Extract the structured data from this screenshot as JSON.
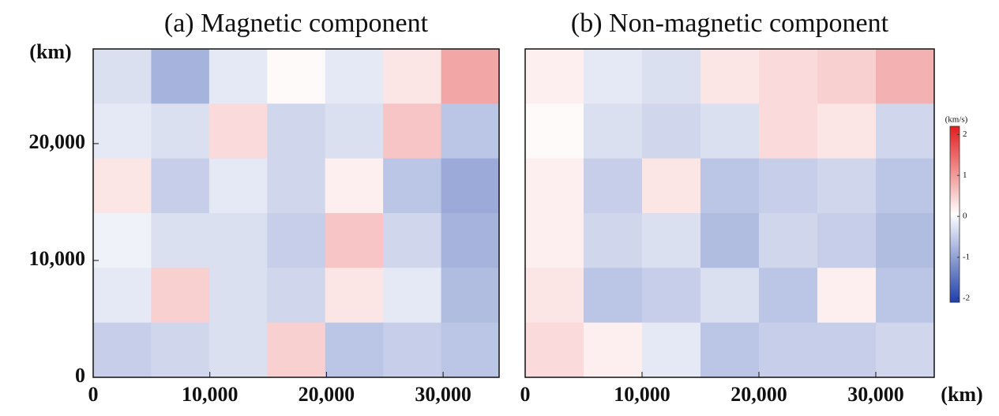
{
  "chart_data": [
    {
      "type": "heatmap",
      "title": "(a)  Magnetic component",
      "xlim": [
        0,
        34800
      ],
      "ylim": [
        0,
        28100
      ],
      "xticks": [
        0,
        {
          "value": 10000,
          "label": "10,000"
        },
        {
          "value": 20000,
          "label": "20,000"
        },
        {
          "value": 30000,
          "label": "30,000"
        }
      ],
      "yticks": [
        0,
        {
          "value": 10000,
          "label": "10,000"
        },
        {
          "value": 20000,
          "label": "20,000"
        }
      ],
      "y_label": "(km)",
      "z": [
        [
          -0.3,
          -0.8,
          -0.2,
          0.1,
          -0.2,
          0.3,
          0.9
        ],
        [
          -0.2,
          -0.3,
          0.4,
          -0.4,
          -0.3,
          0.6,
          -0.6
        ],
        [
          0.3,
          -0.5,
          -0.2,
          -0.4,
          0.2,
          -0.6,
          -0.9
        ],
        [
          -0.1,
          -0.3,
          -0.3,
          -0.5,
          0.6,
          -0.4,
          -0.8
        ],
        [
          -0.2,
          0.5,
          -0.3,
          -0.4,
          0.3,
          -0.2,
          -0.7
        ],
        [
          -0.5,
          -0.4,
          -0.3,
          0.5,
          -0.6,
          -0.5,
          -0.6
        ]
      ]
    },
    {
      "type": "heatmap",
      "title": "(b)  Non-magnetic component",
      "xlim": [
        0,
        35000
      ],
      "ylim": [
        0,
        28100
      ],
      "xticks": [
        0,
        {
          "value": 10000,
          "label": "10,000"
        },
        {
          "value": 20000,
          "label": "20,000"
        },
        {
          "value": 30000,
          "label": "30,000"
        }
      ],
      "x_label": "(km)",
      "z": [
        [
          0.2,
          -0.2,
          -0.3,
          0.3,
          0.4,
          0.5,
          0.8
        ],
        [
          0.1,
          -0.3,
          -0.4,
          -0.3,
          0.4,
          0.3,
          -0.4
        ],
        [
          0.2,
          -0.5,
          0.3,
          -0.6,
          -0.5,
          -0.4,
          -0.6
        ],
        [
          0.2,
          -0.4,
          -0.3,
          -0.7,
          -0.4,
          -0.5,
          -0.7
        ],
        [
          0.3,
          -0.6,
          -0.5,
          -0.3,
          -0.6,
          0.2,
          -0.6
        ],
        [
          0.4,
          0.2,
          -0.2,
          -0.6,
          -0.5,
          -0.5,
          -0.4
        ]
      ]
    }
  ],
  "colorbar": {
    "label": "(km/s)",
    "zlim": [
      -2.1,
      2.2
    ],
    "ticks": [
      2,
      1,
      0,
      -1,
      -2
    ],
    "colors": [
      "#1f3fa8",
      "#ffffff",
      "#e01e1e"
    ]
  }
}
